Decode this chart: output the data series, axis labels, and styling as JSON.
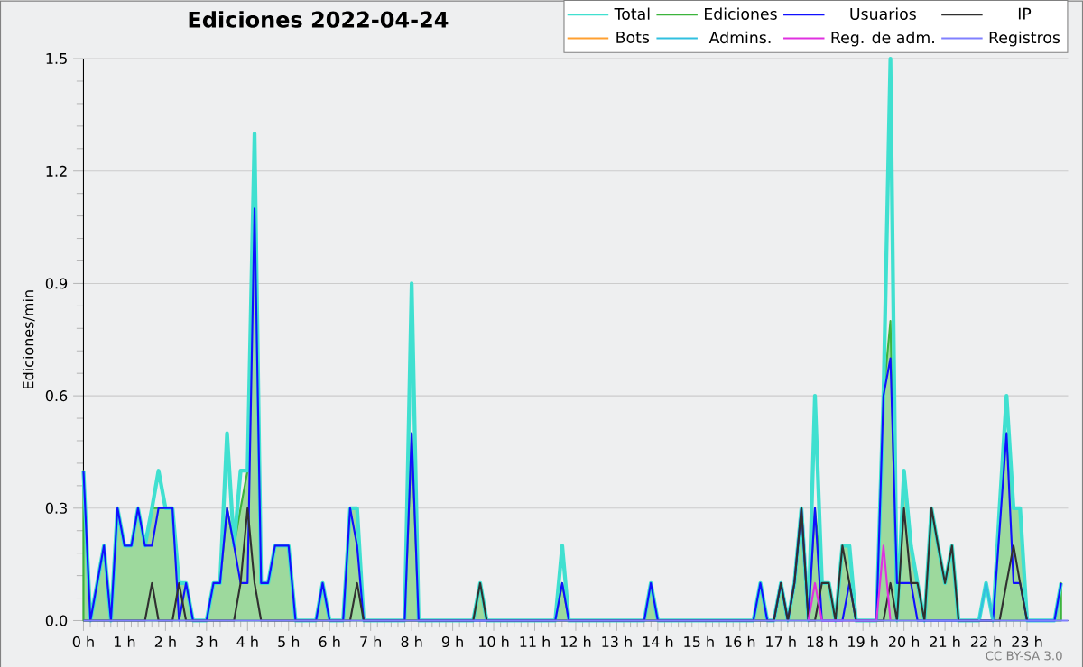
{
  "chart_data": {
    "type": "line",
    "title": "Ediciones  2022-04-24",
    "ylabel": "Ediciones/min",
    "annotations": [
      "CC BY-SA 3.0"
    ],
    "xlim": [
      0,
      24
    ],
    "ylim": [
      0,
      1.5
    ],
    "xticks": [
      {
        "value": 0,
        "label": "0 h"
      },
      {
        "value": 1,
        "label": "1 h"
      },
      {
        "value": 2,
        "label": "2 h"
      },
      {
        "value": 3,
        "label": "3 h"
      },
      {
        "value": 4,
        "label": "4 h"
      },
      {
        "value": 5,
        "label": "5 h"
      },
      {
        "value": 6,
        "label": "6 h"
      },
      {
        "value": 7,
        "label": "7 h"
      },
      {
        "value": 8,
        "label": "8 h"
      },
      {
        "value": 9,
        "label": "9 h"
      },
      {
        "value": 10,
        "label": "10 h"
      },
      {
        "value": 11,
        "label": "11 h"
      },
      {
        "value": 12,
        "label": "12 h"
      },
      {
        "value": 13,
        "label": "13 h"
      },
      {
        "value": 14,
        "label": "14 h"
      },
      {
        "value": 15,
        "label": "15 h"
      },
      {
        "value": 16,
        "label": "16 h"
      },
      {
        "value": 17,
        "label": "17 h"
      },
      {
        "value": 18,
        "label": "18 h"
      },
      {
        "value": 19,
        "label": "19 h"
      },
      {
        "value": 20,
        "label": "20 h"
      },
      {
        "value": 21,
        "label": "21 h"
      },
      {
        "value": 22,
        "label": "22 h"
      },
      {
        "value": 23,
        "label": "23 h"
      }
    ],
    "yticks": [
      {
        "value": 0,
        "label": "0.0"
      },
      {
        "value": 0.3,
        "label": "0.3"
      },
      {
        "value": 0.6,
        "label": "0.6"
      },
      {
        "value": 0.9,
        "label": "0.9"
      },
      {
        "value": 1.2,
        "label": "1.2"
      },
      {
        "value": 1.5,
        "label": "1.5"
      }
    ],
    "grid": "y",
    "legend": "top right",
    "series": [
      {
        "name": "Total",
        "color": "#40e0d0",
        "x": [
          0,
          0.17,
          0.5,
          0.67,
          0.83,
          1,
          1.17,
          1.33,
          1.5,
          1.67,
          1.83,
          2,
          2.17,
          2.33,
          2.5,
          2.67,
          3,
          3.17,
          3.33,
          3.5,
          3.67,
          3.83,
          4,
          4.17,
          4.33,
          4.5,
          4.67,
          5,
          5.17,
          5.67,
          5.83,
          6,
          6.33,
          6.5,
          6.67,
          6.83,
          7.83,
          8,
          8.17,
          9.5,
          9.67,
          9.83,
          11.5,
          11.67,
          11.83,
          13.67,
          13.83,
          14,
          16.33,
          16.5,
          16.67,
          16.83,
          17,
          17.17,
          17.33,
          17.5,
          17.67,
          17.83,
          18,
          18.17,
          18.33,
          18.5,
          18.67,
          18.83,
          19.33,
          19.5,
          19.67,
          19.83,
          20,
          20.17,
          20.33,
          20.5,
          20.67,
          20.83,
          21,
          21.17,
          21.33,
          21.83,
          22,
          22.17,
          22.33,
          22.5,
          22.67,
          22.83,
          23,
          23.67,
          23.83
        ],
        "values": [
          0.4,
          0,
          0.2,
          0,
          0.3,
          0.2,
          0.2,
          0.3,
          0.2,
          0.3,
          0.4,
          0.3,
          0.3,
          0.1,
          0.1,
          0,
          0,
          0.1,
          0.1,
          0.5,
          0.2,
          0.4,
          0.4,
          1.3,
          0.1,
          0.1,
          0.2,
          0.2,
          0,
          0,
          0.1,
          0,
          0,
          0.3,
          0.3,
          0,
          0,
          0.9,
          0,
          0,
          0.1,
          0,
          0,
          0.2,
          0,
          0,
          0.1,
          0,
          0,
          0.1,
          0,
          0,
          0.1,
          0,
          0.1,
          0.3,
          0,
          0.6,
          0.1,
          0.1,
          0,
          0.2,
          0.2,
          0,
          0,
          0.6,
          1.5,
          0,
          0.4,
          0.2,
          0.1,
          0,
          0.3,
          0.2,
          0.1,
          0.2,
          0,
          0,
          0.1,
          0,
          0.3,
          0.6,
          0.3,
          0.3,
          0,
          0,
          0.1
        ]
      },
      {
        "name": "Ediciones",
        "type": "area",
        "color": "#3cb43c",
        "x": [
          0,
          0.17,
          0.5,
          0.67,
          0.83,
          1,
          1.17,
          1.33,
          1.5,
          1.67,
          1.83,
          2,
          2.17,
          2.33,
          2.5,
          2.67,
          3,
          3.17,
          3.33,
          3.5,
          3.67,
          3.83,
          4,
          4.17,
          4.33,
          4.5,
          4.67,
          5,
          5.17,
          5.67,
          5.83,
          6,
          6.33,
          6.5,
          6.67,
          6.83,
          7.83,
          8,
          8.17,
          9.5,
          9.67,
          9.83,
          11.5,
          11.67,
          11.83,
          13.67,
          13.83,
          14,
          16.33,
          16.5,
          16.67,
          16.83,
          17,
          17.17,
          17.33,
          17.5,
          17.67,
          17.83,
          18,
          18.17,
          18.33,
          18.5,
          18.67,
          18.83,
          19.33,
          19.5,
          19.67,
          19.83,
          20,
          20.17,
          20.33,
          20.5,
          20.67,
          20.83,
          21,
          21.17,
          21.33,
          21.83,
          22,
          22.17,
          22.33,
          22.5,
          22.67,
          22.83,
          23,
          23.67,
          23.83
        ],
        "values": [
          0.4,
          0,
          0.2,
          0,
          0.3,
          0.2,
          0.2,
          0.3,
          0.2,
          0.3,
          0.3,
          0.3,
          0.3,
          0.1,
          0.1,
          0,
          0,
          0.1,
          0.1,
          0.3,
          0.2,
          0.3,
          0.4,
          1.2,
          0.1,
          0.1,
          0.2,
          0.2,
          0,
          0,
          0.1,
          0,
          0,
          0.3,
          0.3,
          0,
          0,
          0.5,
          0,
          0,
          0.1,
          0,
          0,
          0.1,
          0,
          0,
          0.1,
          0,
          0,
          0.1,
          0,
          0,
          0.1,
          0,
          0.1,
          0.3,
          0,
          0.3,
          0.1,
          0.1,
          0,
          0.2,
          0.2,
          0,
          0,
          0.6,
          0.8,
          0,
          0.4,
          0.2,
          0.1,
          0,
          0.3,
          0.2,
          0.1,
          0.2,
          0,
          0,
          0,
          0,
          0.3,
          0.5,
          0.3,
          0.3,
          0,
          0,
          0.1
        ]
      },
      {
        "name": "Usuarios",
        "color": "#1010ff",
        "x": [
          0,
          0.17,
          0.5,
          0.67,
          0.83,
          1,
          1.17,
          1.33,
          1.5,
          1.67,
          1.83,
          2.17,
          2.33,
          2.5,
          2.67,
          3,
          3.17,
          3.33,
          3.5,
          3.67,
          3.83,
          4,
          4.17,
          4.33,
          4.5,
          4.67,
          5,
          5.17,
          5.67,
          5.83,
          6,
          6.33,
          6.5,
          6.67,
          6.83,
          7.83,
          8,
          8.17,
          11.5,
          11.67,
          11.83,
          13.67,
          13.83,
          14,
          16.33,
          16.5,
          16.67,
          16.83,
          17,
          17.17,
          17.33,
          17.5,
          17.67,
          17.83,
          18,
          18.5,
          18.67,
          18.83,
          19.33,
          19.5,
          19.67,
          19.83,
          20,
          20.17,
          20.33,
          22.17,
          22.5,
          22.67,
          22.83,
          23,
          23.67,
          23.83
        ],
        "values": [
          0.4,
          0,
          0.2,
          0,
          0.3,
          0.2,
          0.2,
          0.3,
          0.2,
          0.2,
          0.3,
          0.3,
          0,
          0.1,
          0,
          0,
          0.1,
          0.1,
          0.3,
          0.2,
          0.1,
          0.1,
          1.1,
          0.1,
          0.1,
          0.2,
          0.2,
          0,
          0,
          0.1,
          0,
          0,
          0.3,
          0.2,
          0,
          0,
          0.5,
          0,
          0,
          0.1,
          0,
          0,
          0.1,
          0,
          0,
          0.1,
          0,
          0,
          0.1,
          0,
          0.1,
          0.3,
          0,
          0.3,
          0,
          0,
          0.1,
          0,
          0,
          0.6,
          0.7,
          0.1,
          0.1,
          0.1,
          0,
          0,
          0.5,
          0.1,
          0.1,
          0,
          0,
          0.1
        ]
      },
      {
        "name": "IP",
        "color": "#303030",
        "x": [
          0,
          1,
          1.5,
          1.67,
          1.83,
          2.17,
          2.33,
          2.5,
          3.67,
          3.83,
          4,
          4.17,
          4.33,
          6.5,
          6.67,
          6.83,
          9.5,
          9.67,
          9.83,
          16.83,
          17,
          17.17,
          17.33,
          17.5,
          17.67,
          17.83,
          18,
          18.17,
          18.33,
          18.5,
          18.67,
          18.83,
          19.5,
          19.67,
          19.83,
          20,
          20.17,
          20.33,
          20.5,
          20.67,
          20.83,
          21,
          21.17,
          21.33,
          22.33,
          22.5,
          22.67,
          22.83,
          23
        ],
        "values": [
          0,
          0,
          0,
          0.1,
          0,
          0,
          0.1,
          0,
          0,
          0.1,
          0.3,
          0.1,
          0,
          0,
          0.1,
          0,
          0,
          0.1,
          0,
          0,
          0.1,
          0,
          0.1,
          0.3,
          0,
          0,
          0.1,
          0.1,
          0,
          0.2,
          0.1,
          0,
          0,
          0.1,
          0,
          0.3,
          0.1,
          0.1,
          0,
          0.3,
          0.2,
          0.1,
          0.2,
          0,
          0,
          0.1,
          0.2,
          0.1,
          0
        ]
      },
      {
        "name": "Bots",
        "color": "#ffa030"
      },
      {
        "name": "Admins.",
        "color": "#30c0e0",
        "x": [
          21.83,
          22,
          22.17
        ],
        "values": [
          0,
          0.1,
          0
        ]
      },
      {
        "name": "Reg. de adm.",
        "color": "#e030e0",
        "x": [
          17.67,
          17.83,
          18,
          19.33,
          19.5,
          19.67
        ],
        "values": [
          0,
          0.1,
          0,
          0,
          0.2,
          0
        ]
      },
      {
        "name": "Registros",
        "color": "#8080ff",
        "x": [
          0,
          24
        ],
        "values": [
          0,
          0
        ]
      }
    ]
  }
}
